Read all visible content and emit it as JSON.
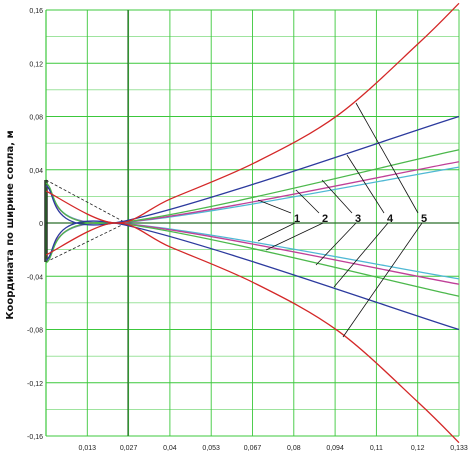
{
  "chart_data": {
    "type": "line",
    "title": "",
    "xlabel": "",
    "ylabel": "Координата по ширине сопла, м",
    "xlim": [
      0,
      0.133
    ],
    "ylim": [
      -0.16,
      0.16
    ],
    "x_ticks": [
      "0,013",
      "0,027",
      "0,04",
      "0,053",
      "0,067",
      "0,08",
      "0,094",
      "0,11",
      "0,12",
      "0,133"
    ],
    "y_ticks": [
      "0,16",
      "0,12",
      "0,08",
      "0,04",
      "0",
      "-0,04",
      "-0,08",
      "-0,12",
      "-0,16"
    ],
    "grid": true,
    "grid_color": "#3cc83c",
    "axis_color": "#2a6e2a",
    "series": [
      {
        "name": "1",
        "color": "#4fb8d4",
        "x": [
          0,
          0.022,
          0.133
        ],
        "y_upper": [
          0.028,
          0.0,
          0.042
        ],
        "y_lower": [
          -0.028,
          0.0,
          -0.042
        ]
      },
      {
        "name": "2",
        "color": "#c04098",
        "x": [
          0,
          0.022,
          0.133
        ],
        "y_upper": [
          0.028,
          0.0,
          0.046
        ],
        "y_lower": [
          -0.028,
          0.0,
          -0.046
        ]
      },
      {
        "name": "3",
        "color": "#4cb84c",
        "x": [
          0,
          0.022,
          0.133
        ],
        "y_upper": [
          0.03,
          0.0,
          0.055
        ],
        "y_lower": [
          -0.03,
          0.0,
          -0.055
        ]
      },
      {
        "name": "4",
        "color": "#2c3a9e",
        "x": [
          0,
          0.022,
          0.133
        ],
        "y_upper": [
          0.028,
          0.0,
          0.08
        ],
        "y_lower": [
          -0.028,
          0.0,
          -0.08
        ]
      },
      {
        "name": "5",
        "color": "#d42828",
        "x": [
          0,
          0.022,
          0.04,
          0.067,
          0.094,
          0.12,
          0.133
        ],
        "y_upper": [
          0.024,
          0.0,
          0.018,
          0.045,
          0.081,
          0.135,
          0.165
        ],
        "y_lower": [
          -0.024,
          0.0,
          -0.018,
          -0.045,
          -0.081,
          -0.135,
          -0.165
        ]
      }
    ],
    "callouts": [
      "1",
      "2",
      "3",
      "4",
      "5"
    ]
  }
}
